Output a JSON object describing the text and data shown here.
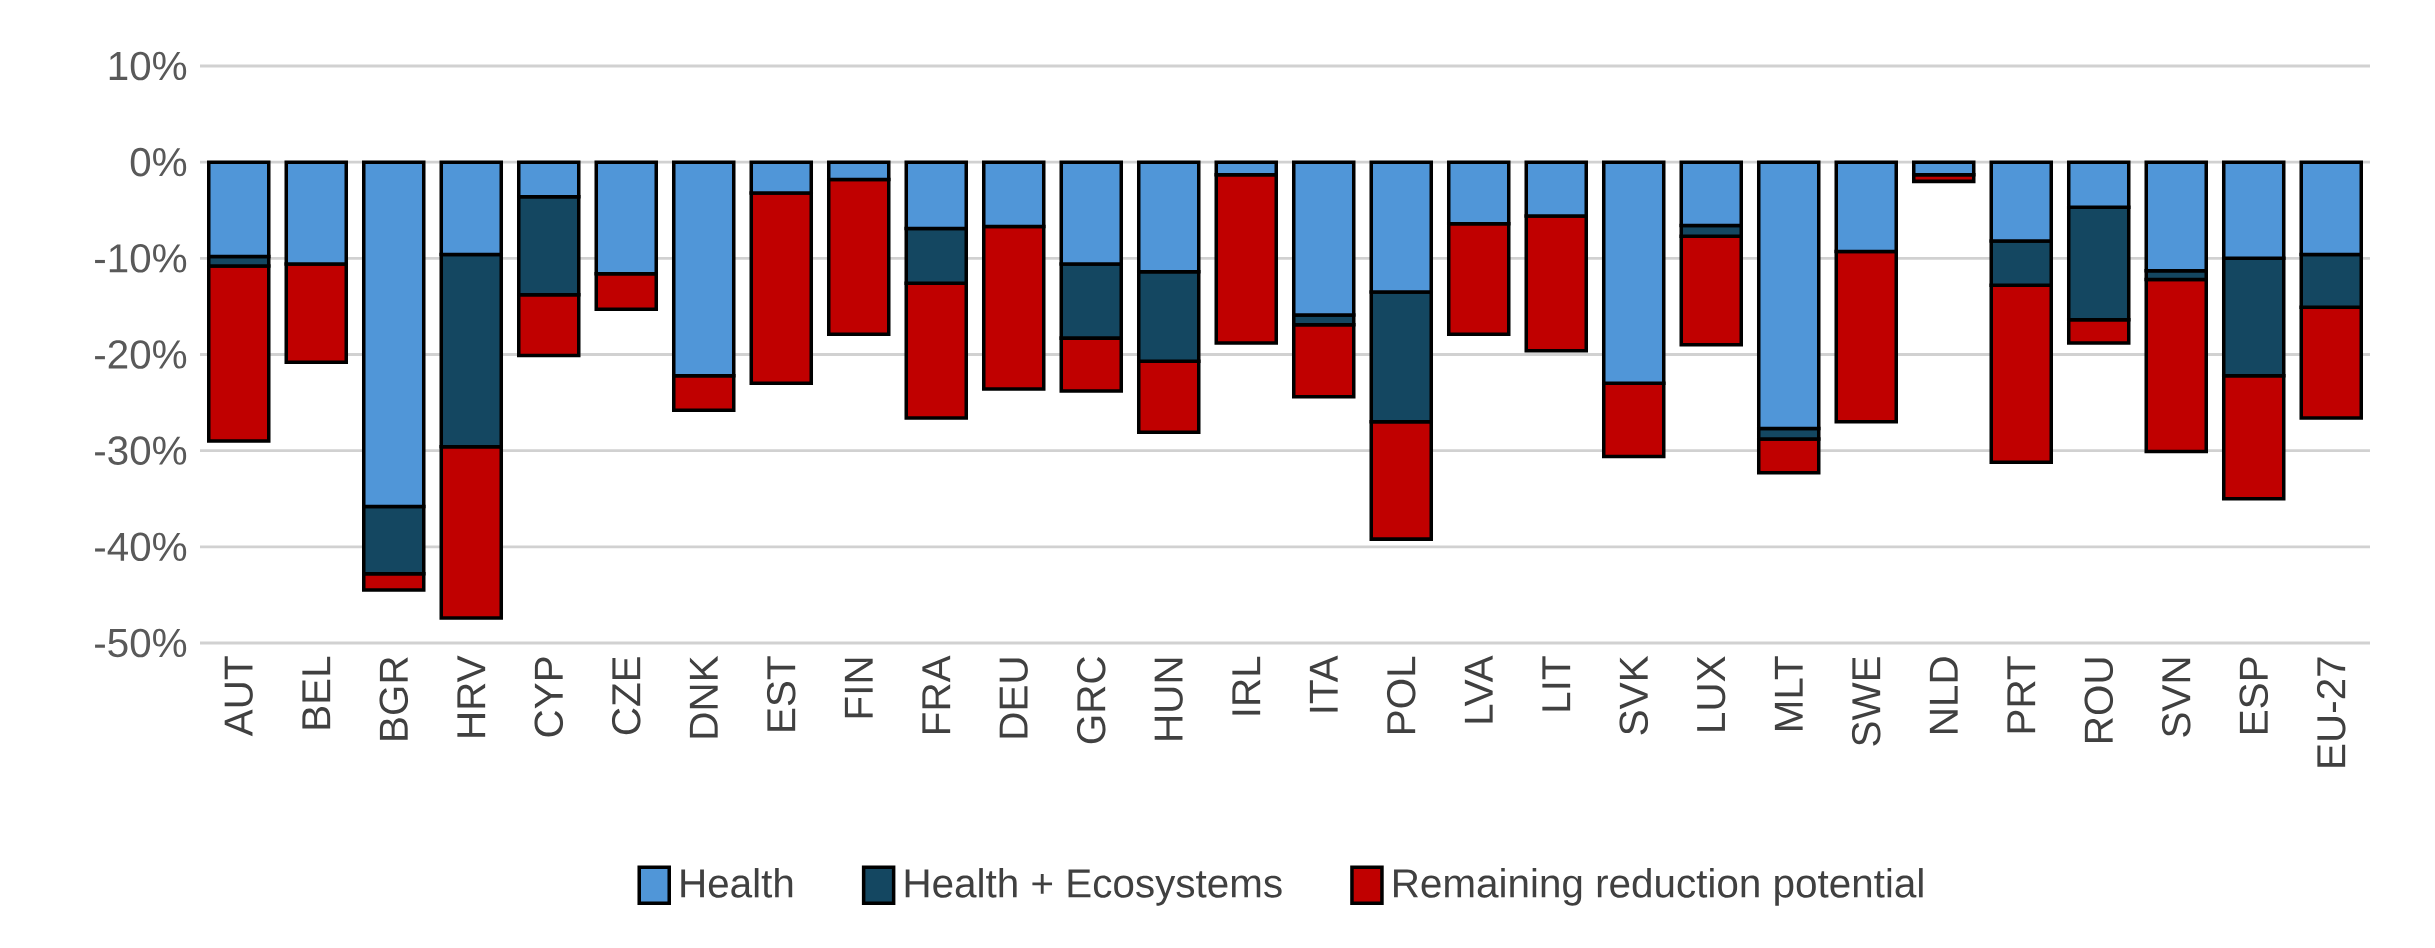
{
  "chart_data": {
    "type": "bar",
    "stacked": true,
    "categories": [
      "AUT",
      "BEL",
      "BGR",
      "HRV",
      "CYP",
      "CZE",
      "DNK",
      "EST",
      "FIN",
      "FRA",
      "DEU",
      "GRC",
      "HUN",
      "IRL",
      "ITA",
      "POL",
      "LVA",
      "LIT",
      "SVK",
      "LUX",
      "MLT",
      "SWE",
      "NLD",
      "PRT",
      "ROU",
      "SVN",
      "ESP",
      "EU-27"
    ],
    "series": [
      {
        "name": "Health",
        "color": "#5096d8",
        "values": [
          -9.8,
          -10.6,
          -35.8,
          -9.6,
          -3.6,
          -11.6,
          -22.2,
          -3.2,
          -1.8,
          -6.9,
          -6.7,
          -10.6,
          -11.4,
          -1.3,
          -15.9,
          -13.5,
          -6.4,
          -5.6,
          -23,
          -6.6,
          -27.7,
          -9.3,
          -1.3,
          -8.2,
          -4.7,
          -11.3,
          -10,
          -9.6
        ]
      },
      {
        "name": "Health + Ecosystems",
        "color": "#144761",
        "values": [
          -1,
          0,
          -7,
          -20,
          -10.2,
          0,
          0,
          0,
          0,
          -5.7,
          0,
          -7.7,
          -9.3,
          0,
          -1,
          -13.5,
          0,
          0,
          0,
          -1.1,
          -1.1,
          0,
          0,
          -4.6,
          -11.7,
          -0.9,
          -12.2,
          -5.5
        ]
      },
      {
        "name": "Remaining reduction potential",
        "color": "#c00000",
        "values": [
          -18.2,
          -10.2,
          -1.7,
          -17.8,
          -6.3,
          -3.7,
          -3.6,
          -19.8,
          -16.1,
          -14,
          -16.9,
          -5.5,
          -7.4,
          -17.5,
          -7.5,
          -12.2,
          -11.5,
          -14,
          -7.6,
          -11.3,
          -3.5,
          -17.7,
          -0.7,
          -18.4,
          -2.4,
          -17.9,
          -12.8,
          -11.5
        ]
      }
    ],
    "ylim": [
      -50,
      10
    ],
    "yticks": [
      {
        "value": -50,
        "label": "-50%"
      },
      {
        "value": -40,
        "label": "-40%"
      },
      {
        "value": -30,
        "label": "-30%"
      },
      {
        "value": -20,
        "label": "-20%"
      },
      {
        "value": -10,
        "label": "-10%"
      },
      {
        "value": 0,
        "label": "0%"
      },
      {
        "value": 10,
        "label": "10%"
      }
    ],
    "grid": "y",
    "legend": "bottom"
  }
}
